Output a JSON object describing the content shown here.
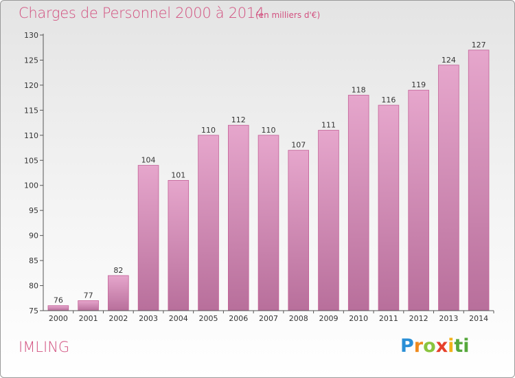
{
  "chart_data": {
    "type": "bar",
    "title": "Charges de Personnel 2000 à 2014",
    "subtitle": "(en milliers d'€)",
    "xlabel": "",
    "ylabel": "",
    "categories": [
      "2000",
      "2001",
      "2002",
      "2003",
      "2004",
      "2005",
      "2006",
      "2007",
      "2008",
      "2009",
      "2010",
      "2011",
      "2012",
      "2013",
      "2014"
    ],
    "values": [
      76,
      77,
      82,
      104,
      101,
      110,
      112,
      110,
      107,
      111,
      118,
      116,
      119,
      124,
      127
    ],
    "ylim": [
      75,
      130
    ],
    "yticks": [
      75,
      80,
      85,
      90,
      95,
      100,
      105,
      110,
      115,
      120,
      125,
      130
    ],
    "grid": false,
    "bar_color": "#d784b3"
  },
  "commune": "IMLING",
  "brand": {
    "name": "Proxiti",
    "letters": [
      "P",
      "r",
      "o",
      "x",
      "i",
      "ti"
    ]
  }
}
